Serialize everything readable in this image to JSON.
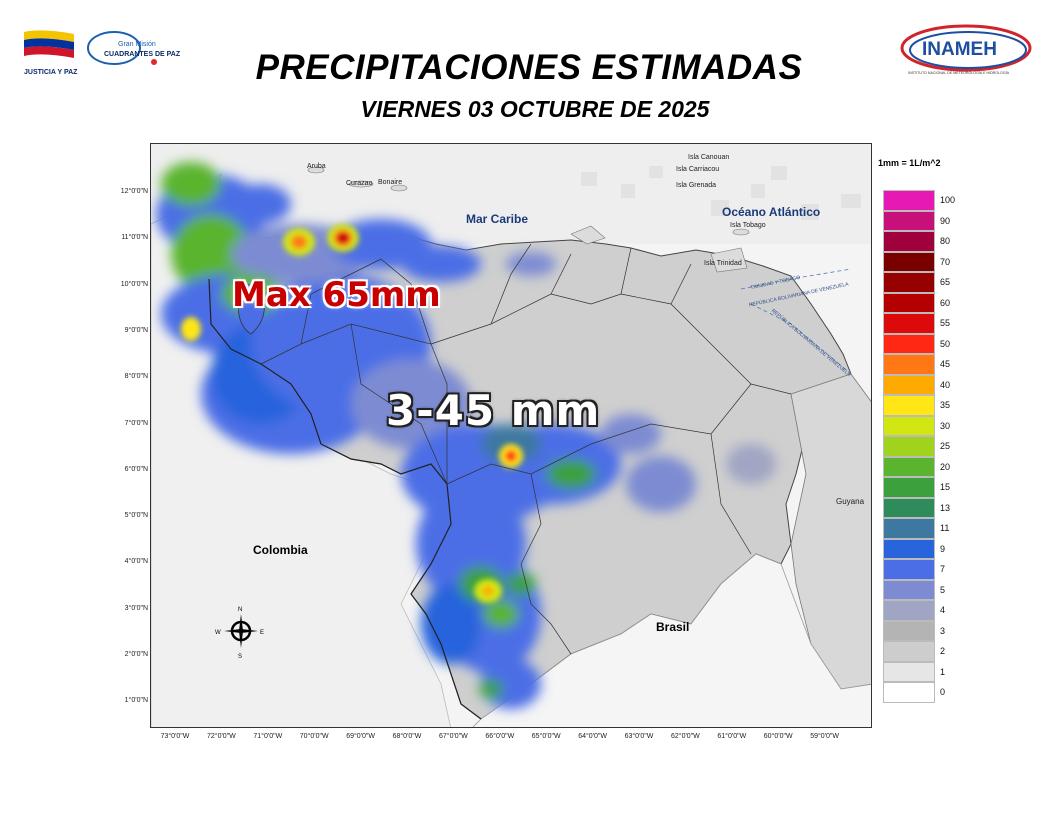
{
  "header": {
    "title": "PRECIPITACIONES ESTIMADAS",
    "subtitle": "VIERNES 03 OCTUBRE DE 2025"
  },
  "logos": {
    "left_text_1": "JUSTICIA Y PAZ",
    "left_text_2": "Gran Misión",
    "left_text_3": "CUADRANTES DE PAZ",
    "right_text": "INAMEH",
    "right_subtext": "INSTITUTO NACIONAL DE METEOROLOGÍA E HIDROLOGÍA"
  },
  "map": {
    "lat_labels": [
      "12°0'0\"N",
      "11°0'0\"N",
      "10°0'0\"N",
      "9°0'0\"N",
      "8°0'0\"N",
      "7°0'0\"N",
      "6°0'0\"N",
      "5°0'0\"N",
      "4°0'0\"N",
      "3°0'0\"N",
      "2°0'0\"N",
      "1°0'0\"N"
    ],
    "lon_labels": [
      "73°0'0\"W",
      "72°0'0\"W",
      "71°0'0\"W",
      "70°0'0\"W",
      "69°0'0\"W",
      "68°0'0\"W",
      "67°0'0\"W",
      "66°0'0\"W",
      "65°0'0\"W",
      "64°0'0\"W",
      "63°0'0\"W",
      "62°0'0\"W",
      "61°0'0\"W",
      "60°0'0\"W",
      "59°0'0\"W"
    ],
    "max_label": "Max 65mm",
    "range_label": "3-45 mm",
    "seas": [
      "Mar Caribe",
      "Océano Atlántico"
    ],
    "countries": [
      "Colombia",
      "Brasil",
      "Guyana"
    ],
    "places": [
      "Aruba",
      "Curazao",
      "Bonaire",
      "Isla Carriacou",
      "Isla Canouan",
      "Isla Grenada",
      "Isla Tobago",
      "Isla Trinidad",
      "TRINIDAD Y TOBAGO",
      "REPÚBLICA BOLIVARIANA DE VENEZUELA",
      "REPÚBLICA BOLIVARIANA DE VENEZUELA"
    ],
    "compass": [
      "N",
      "S",
      "E",
      "W"
    ]
  },
  "legend": {
    "unit_note": "1mm = 1L/m^2",
    "items": [
      {
        "value": "100",
        "color": "#e619b4"
      },
      {
        "value": "90",
        "color": "#c8107a"
      },
      {
        "value": "80",
        "color": "#a0003c"
      },
      {
        "value": "70",
        "color": "#7a0000"
      },
      {
        "value": "65",
        "color": "#960000"
      },
      {
        "value": "60",
        "color": "#b40000"
      },
      {
        "value": "55",
        "color": "#dc0a0a"
      },
      {
        "value": "50",
        "color": "#ff2814"
      },
      {
        "value": "45",
        "color": "#ff7814"
      },
      {
        "value": "40",
        "color": "#ffaa00"
      },
      {
        "value": "35",
        "color": "#ffe614"
      },
      {
        "value": "30",
        "color": "#d2e614"
      },
      {
        "value": "25",
        "color": "#a0d21e"
      },
      {
        "value": "20",
        "color": "#5ab42d"
      },
      {
        "value": "15",
        "color": "#3ca03c"
      },
      {
        "value": "13",
        "color": "#2d8c5a"
      },
      {
        "value": "11",
        "color": "#3c78a0"
      },
      {
        "value": "9",
        "color": "#2864dc"
      },
      {
        "value": "7",
        "color": "#4b6ee6"
      },
      {
        "value": "5",
        "color": "#7d8cd2"
      },
      {
        "value": "4",
        "color": "#a0a5c3"
      },
      {
        "value": "3",
        "color": "#b4b4b4"
      },
      {
        "value": "2",
        "color": "#cdcdcd"
      },
      {
        "value": "1",
        "color": "#e6e6e6"
      },
      {
        "value": "0",
        "color": "#ffffff"
      }
    ]
  }
}
